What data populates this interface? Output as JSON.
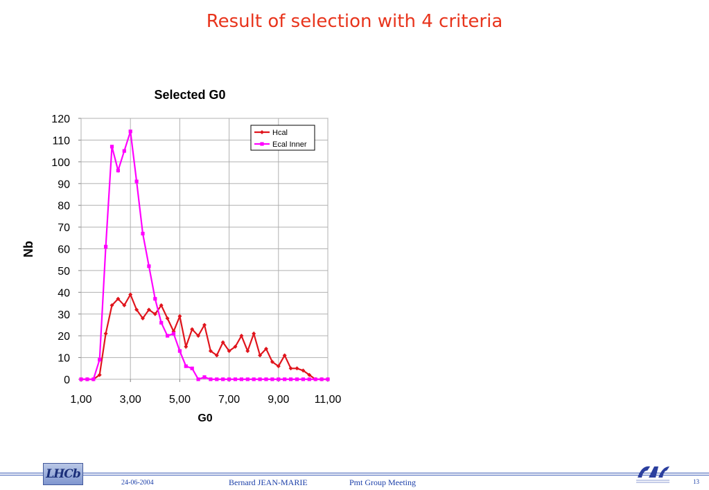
{
  "slide": {
    "title": "Result of selection with 4 criteria",
    "footer": {
      "date": "24-06-2004",
      "author": "Bernard JEAN-MARIE",
      "meeting": "Pmt Group Meeting",
      "page": "13",
      "logo_left_text": "LHCb",
      "logo_right_text": "LAL"
    },
    "colors": {
      "title": "#e8341c",
      "footer_text": "#1a3ea8"
    }
  },
  "chart_data": {
    "type": "line",
    "title": "Selected G0",
    "xlabel": "G0",
    "ylabel": "Nb",
    "xlim": [
      1,
      11
    ],
    "ylim": [
      0,
      120
    ],
    "x_ticks": [
      1,
      3,
      5,
      7,
      9,
      11
    ],
    "x_tick_labels": [
      "1,00",
      "3,00",
      "5,00",
      "7,00",
      "9,00",
      "11,00"
    ],
    "y_ticks": [
      0,
      10,
      20,
      30,
      40,
      50,
      60,
      70,
      80,
      90,
      100,
      110,
      120
    ],
    "grid": true,
    "legend_position": "top-right",
    "x": [
      1.0,
      1.25,
      1.5,
      1.75,
      2.0,
      2.25,
      2.5,
      2.75,
      3.0,
      3.25,
      3.5,
      3.75,
      4.0,
      4.25,
      4.5,
      4.75,
      5.0,
      5.25,
      5.5,
      5.75,
      6.0,
      6.25,
      6.5,
      6.75,
      7.0,
      7.25,
      7.5,
      7.75,
      8.0,
      8.25,
      8.5,
      8.75,
      9.0,
      9.25,
      9.5,
      9.75,
      10.0,
      10.25,
      10.5,
      10.75,
      11.0
    ],
    "series": [
      {
        "name": "Hcal",
        "color": "#e0141c",
        "marker": "diamond",
        "values": [
          0,
          0,
          0,
          2,
          21,
          34,
          37,
          34,
          39,
          32,
          28,
          32,
          30,
          34,
          28,
          22,
          29,
          15,
          23,
          20,
          25,
          13,
          11,
          17,
          13,
          15,
          20,
          13,
          21,
          11,
          14,
          8,
          6,
          11,
          5,
          5,
          4,
          2,
          0,
          0,
          0
        ]
      },
      {
        "name": "Ecal Inner",
        "color": "#ff00ff",
        "marker": "square",
        "values": [
          0,
          0,
          0,
          9,
          61,
          107,
          96,
          105,
          114,
          91,
          67,
          52,
          37,
          26,
          20,
          21,
          13,
          6,
          5,
          0,
          1,
          0,
          0,
          0,
          0,
          0,
          0,
          0,
          0,
          0,
          0,
          0,
          0,
          0,
          0,
          0,
          0,
          0,
          0,
          0,
          0
        ]
      }
    ]
  }
}
